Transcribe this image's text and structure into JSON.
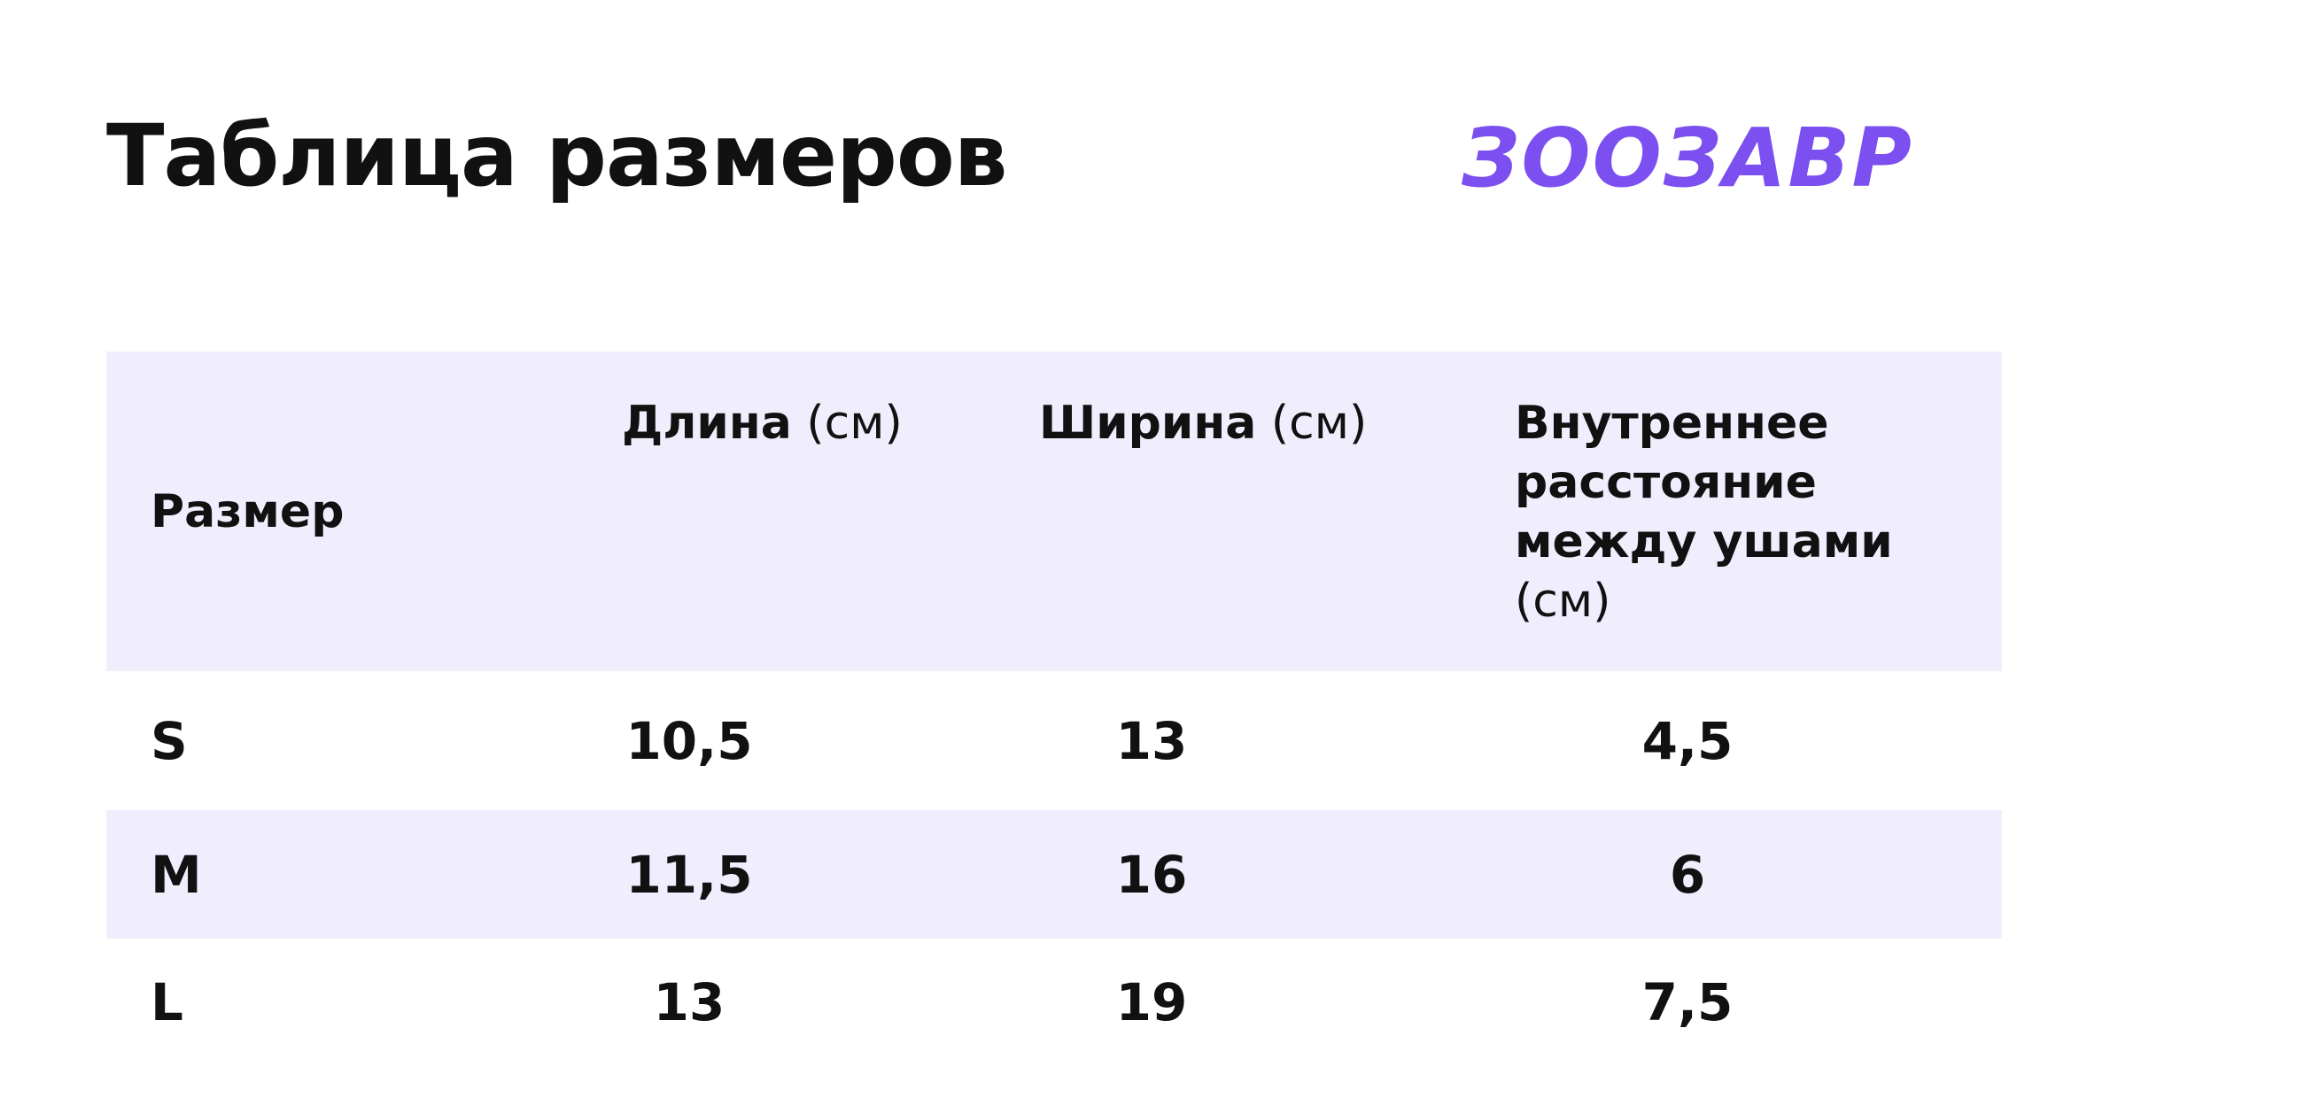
{
  "header": {
    "title": "Таблица размеров",
    "logo": "ЗООЗАВР"
  },
  "table": {
    "columns": [
      {
        "label": "Размер"
      },
      {
        "label": "Длина",
        "unit": "(см)"
      },
      {
        "label": "Ширина",
        "unit": "(см)"
      },
      {
        "label": "Внутреннее расстояние между ушами",
        "unit": "(см)"
      }
    ],
    "rows": [
      [
        "S",
        "10,5",
        "13",
        "4,5"
      ],
      [
        "M",
        "11,5",
        "16",
        "6"
      ],
      [
        "L",
        "13",
        "19",
        "7,5"
      ]
    ]
  }
}
